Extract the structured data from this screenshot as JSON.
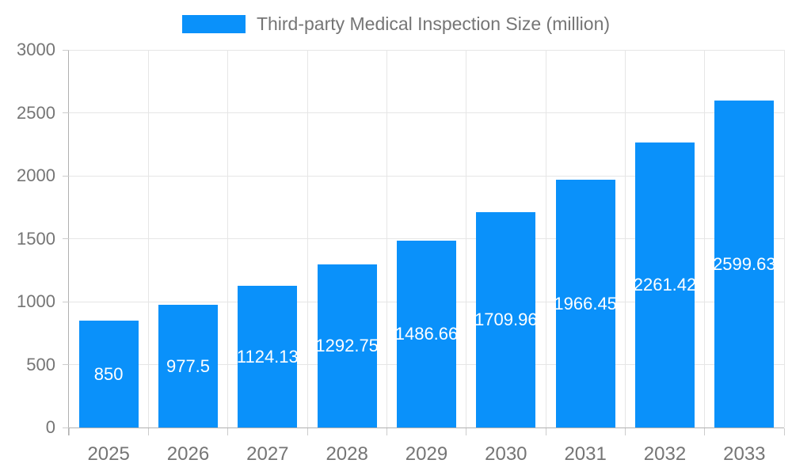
{
  "colors": {
    "bar": "#0a91fa",
    "bar_label_text": "#ffffff",
    "axis_text": "#757575",
    "legend_text": "#757575",
    "gridline": "#e6e6e6",
    "axis_line": "#b0b0b0",
    "tick": "#cccccc",
    "background": "#ffffff"
  },
  "chart_data": {
    "type": "bar",
    "title": "Third-party Medical Inspection Size (million)",
    "categories": [
      "2025",
      "2026",
      "2027",
      "2028",
      "2029",
      "2030",
      "2031",
      "2032",
      "2033"
    ],
    "values": [
      850,
      977.5,
      1124.13,
      1292.75,
      1486.66,
      1709.96,
      1966.45,
      2261.42,
      2599.63
    ],
    "bar_labels": [
      "850",
      "977.5",
      "1124.13",
      "1292.75",
      "1486.66",
      "1709.96",
      "1966.45",
      "2261.42",
      "2599.63"
    ],
    "xlabel": "",
    "ylabel": "",
    "ylim": [
      0,
      3000
    ],
    "yticks": [
      0,
      500,
      1000,
      1500,
      2000,
      2500,
      3000
    ],
    "ytick_labels": [
      "0",
      "500",
      "1000",
      "1500",
      "2000",
      "2500",
      "3000"
    ],
    "grid": true,
    "legend_position": "top"
  }
}
